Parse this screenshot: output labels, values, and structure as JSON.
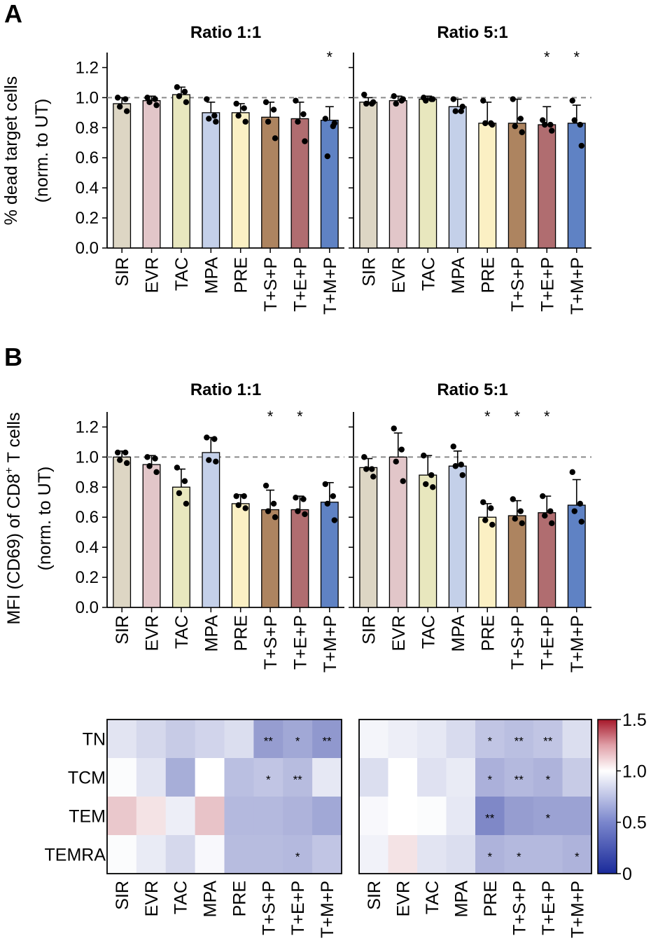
{
  "figure": {
    "panel_a_letter": "A",
    "panel_b_letter": "B"
  },
  "chart_data": [
    {
      "id": "A_1to1",
      "type": "bar",
      "panel": "A",
      "title": "Ratio 1:1",
      "ylabel_line1": "% dead target cells",
      "ylabel_line2": "(norm. to UT)",
      "ylim": [
        0,
        1.3
      ],
      "yticks": [
        "0.0",
        "0.2",
        "0.4",
        "0.6",
        "0.8",
        "1.0",
        "1.2"
      ],
      "reference_line": 1.0,
      "categories": [
        "SIR",
        "EVR",
        "TAC",
        "MPA",
        "PRE",
        "T+S+P",
        "T+E+P",
        "T+M+P"
      ],
      "values": [
        0.96,
        0.98,
        1.02,
        0.9,
        0.9,
        0.87,
        0.86,
        0.85
      ],
      "errors": [
        0.04,
        0.03,
        0.05,
        0.07,
        0.06,
        0.1,
        0.11,
        0.09
      ],
      "points": [
        [
          1.0,
          0.99,
          0.94,
          0.91
        ],
        [
          1.0,
          0.99,
          0.97,
          0.95
        ],
        [
          1.07,
          1.04,
          1.01,
          0.97
        ],
        [
          0.99,
          0.88,
          0.86,
          0.84
        ],
        [
          0.96,
          0.93,
          0.88,
          0.84
        ],
        [
          0.97,
          0.92,
          0.84,
          0.73
        ],
        [
          0.98,
          0.89,
          0.84,
          0.71
        ],
        [
          0.86,
          0.81,
          0.61,
          0.83
        ]
      ],
      "significance": [
        "",
        "",
        "",
        "",
        "",
        "",
        "",
        "*"
      ]
    },
    {
      "id": "A_5to1",
      "type": "bar",
      "panel": "A",
      "title": "Ratio 5:1",
      "ylim": [
        0,
        1.3
      ],
      "reference_line": 1.0,
      "categories": [
        "SIR",
        "EVR",
        "TAC",
        "MPA",
        "PRE",
        "T+S+P",
        "T+E+P",
        "T+M+P"
      ],
      "values": [
        0.97,
        0.98,
        0.99,
        0.94,
        0.83,
        0.83,
        0.82,
        0.83
      ],
      "errors": [
        0.03,
        0.03,
        0.02,
        0.05,
        0.14,
        0.16,
        0.12,
        0.12
      ],
      "points": [
        [
          1.02,
          0.96,
          0.96,
          0.97
        ],
        [
          1.01,
          0.98,
          0.96,
          0.99
        ],
        [
          1.0,
          0.99,
          0.98,
          0.99
        ],
        [
          0.99,
          0.91,
          0.91,
          0.94
        ],
        [
          0.98,
          0.83,
          0.83,
          0.82
        ],
        [
          0.99,
          0.86,
          0.81,
          0.77
        ],
        [
          0.85,
          0.82,
          0.82,
          0.78
        ],
        [
          0.98,
          0.82,
          0.85,
          0.68
        ]
      ],
      "significance": [
        "",
        "",
        "",
        "",
        "",
        "",
        "*",
        "*"
      ]
    },
    {
      "id": "B_1to1",
      "type": "bar",
      "panel": "B",
      "title": "Ratio 1:1",
      "ylabel_line1": "MFI (CD69) of  CD8",
      "ylabel_plus": "+",
      "ylabel_line1_end": " T cells",
      "ylabel_line2": "(norm. to UT)",
      "ylim": [
        0,
        1.3
      ],
      "yticks": [
        "0.0",
        "0.2",
        "0.4",
        "0.6",
        "0.8",
        "1.0",
        "1.2"
      ],
      "reference_line": 1.0,
      "categories": [
        "SIR",
        "EVR",
        "TAC",
        "MPA",
        "PRE",
        "T+S+P",
        "T+E+P",
        "T+M+P"
      ],
      "values": [
        1.0,
        0.95,
        0.8,
        1.03,
        0.69,
        0.65,
        0.65,
        0.7
      ],
      "errors": [
        0.04,
        0.06,
        0.12,
        0.1,
        0.06,
        0.13,
        0.09,
        0.13
      ],
      "points": [
        [
          1.03,
          1.03,
          0.98,
          0.96
        ],
        [
          1.0,
          0.99,
          0.94,
          0.9
        ],
        [
          0.93,
          0.84,
          0.76,
          0.69
        ],
        [
          1.13,
          1.12,
          0.98,
          0.97
        ],
        [
          0.74,
          0.74,
          0.68,
          0.66
        ],
        [
          0.81,
          0.69,
          0.64,
          0.6
        ],
        [
          0.73,
          0.72,
          0.64,
          0.62
        ],
        [
          0.82,
          0.74,
          0.69,
          0.58
        ]
      ],
      "significance": [
        "",
        "",
        "",
        "",
        "",
        "*",
        "*",
        ""
      ]
    },
    {
      "id": "B_5to1",
      "type": "bar",
      "panel": "B",
      "title": "Ratio 5:1",
      "ylim": [
        0,
        1.3
      ],
      "reference_line": 1.0,
      "categories": [
        "SIR",
        "EVR",
        "TAC",
        "MPA",
        "PRE",
        "T+S+P",
        "T+E+P",
        "T+M+P"
      ],
      "values": [
        0.93,
        1.0,
        0.88,
        0.94,
        0.6,
        0.61,
        0.63,
        0.68
      ],
      "errors": [
        0.06,
        0.16,
        0.13,
        0.1,
        0.09,
        0.1,
        0.11,
        0.17
      ],
      "points": [
        [
          1.0,
          0.92,
          0.92,
          0.87
        ],
        [
          1.19,
          1.05,
          0.97,
          0.84
        ],
        [
          1.01,
          0.88,
          0.82,
          0.8
        ],
        [
          1.07,
          0.95,
          0.94,
          0.88
        ],
        [
          0.7,
          0.66,
          0.58,
          0.55
        ],
        [
          0.72,
          0.64,
          0.59,
          0.56
        ],
        [
          0.74,
          0.64,
          0.61,
          0.56
        ],
        [
          0.9,
          0.69,
          0.64,
          0.57
        ]
      ],
      "significance": [
        "",
        "",
        "",
        "",
        "*",
        "*",
        "*",
        ""
      ]
    },
    {
      "id": "B_heat_1to1",
      "type": "heatmap",
      "panel": "B",
      "title": "Ratio 1:1",
      "rows": [
        "TN",
        "TCM",
        "TEM",
        "TEMRA"
      ],
      "columns": [
        "SIR",
        "EVR",
        "TAC",
        "MPA",
        "PRE",
        "T+S+P",
        "T+E+P",
        "T+M+P"
      ],
      "values": [
        [
          0.92,
          0.88,
          0.84,
          0.87,
          0.9,
          0.68,
          0.72,
          0.66
        ],
        [
          0.99,
          0.92,
          0.74,
          1.0,
          0.8,
          0.82,
          0.79,
          0.93
        ],
        [
          1.12,
          1.06,
          0.95,
          1.13,
          0.78,
          0.78,
          0.76,
          0.72
        ],
        [
          0.99,
          0.94,
          0.88,
          0.98,
          0.79,
          0.79,
          0.78,
          0.82
        ]
      ],
      "significance": [
        [
          "",
          "",
          "",
          "",
          "",
          "**",
          "*",
          "**"
        ],
        [
          "",
          "",
          "",
          "",
          "",
          "*",
          "**",
          ""
        ],
        [
          "",
          "",
          "",
          "",
          "",
          "",
          "",
          ""
        ],
        [
          "",
          "",
          "",
          "",
          "",
          "",
          "*",
          ""
        ]
      ]
    },
    {
      "id": "B_heat_5to1",
      "type": "heatmap",
      "panel": "B",
      "title": "Ratio 5:1",
      "rows": [
        "TN",
        "TCM",
        "TEM",
        "TEMRA"
      ],
      "columns": [
        "SIR",
        "EVR",
        "TAC",
        "MPA",
        "PRE",
        "T+S+P",
        "T+E+P",
        "T+M+P"
      ],
      "values": [
        [
          0.97,
          0.95,
          0.93,
          0.89,
          0.82,
          0.8,
          0.82,
          0.9
        ],
        [
          0.9,
          1.0,
          0.91,
          0.94,
          0.75,
          0.78,
          0.76,
          0.84
        ],
        [
          0.98,
          1.0,
          0.99,
          0.93,
          0.6,
          0.68,
          0.7,
          0.7
        ],
        [
          0.96,
          1.06,
          0.92,
          0.9,
          0.76,
          0.78,
          0.78,
          0.76
        ]
      ],
      "significance": [
        [
          "",
          "",
          "",
          "",
          "*",
          "**",
          "**",
          ""
        ],
        [
          "",
          "",
          "",
          "",
          "*",
          "**",
          "*",
          ""
        ],
        [
          "",
          "",
          "",
          "",
          "**",
          "",
          "*",
          ""
        ],
        [
          "",
          "",
          "",
          "",
          "*",
          "*",
          "",
          "*"
        ]
      ]
    }
  ],
  "colorbar": {
    "min": 0,
    "max": 1.5,
    "ticks": [
      "1.5",
      "1.0",
      "0.5",
      "0"
    ],
    "low_color": "#1a2a9a",
    "mid_color": "#ffffff",
    "high_color": "#a6182a"
  },
  "colors": {
    "bars": [
      "#ddd6c4",
      "#e2c6c9",
      "#e8e7be",
      "#c4d0e9",
      "#fbf0c4",
      "#ad8460",
      "#b06d70",
      "#5f82c4"
    ],
    "reference_line": "#8a8a8a"
  }
}
